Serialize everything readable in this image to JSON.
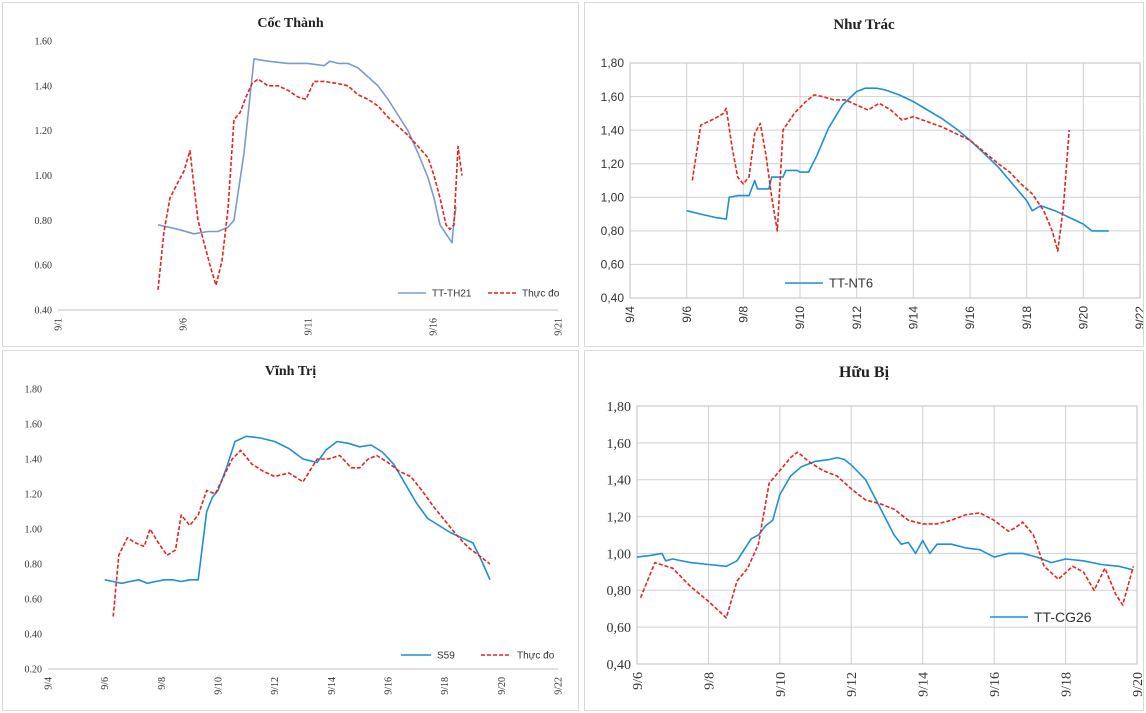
{
  "chart_data": [
    {
      "type": "line",
      "title": "Cốc Thành",
      "ylim": [
        0.4,
        1.6
      ],
      "yticks": [
        "0.40",
        "0.60",
        "0.80",
        "1.00",
        "1.20",
        "1.40",
        "1.60"
      ],
      "xlim": [
        1,
        26
      ],
      "xticks": [
        "9/1",
        "9/6",
        "9/11",
        "9/16",
        "9/21"
      ],
      "grid": false,
      "legend": "bottom-right",
      "series": [
        {
          "name": "TT-TH21",
          "color": "#7a9ccc",
          "dash": "solid",
          "x": [
            6.0,
            7.0,
            7.8,
            8.5,
            9.0,
            9.5,
            9.8,
            10.3,
            10.8,
            11.5,
            12.5,
            13.5,
            14.3,
            14.6,
            15.0,
            15.5,
            16.0,
            16.5,
            17.0,
            17.5,
            18.0,
            18.5,
            19.0,
            19.5,
            19.8,
            20.1,
            20.4,
            20.7,
            20.8,
            20.9
          ],
          "y": [
            0.78,
            0.76,
            0.74,
            0.75,
            0.75,
            0.77,
            0.8,
            1.1,
            1.52,
            1.51,
            1.5,
            1.5,
            1.49,
            1.51,
            1.5,
            1.5,
            1.48,
            1.44,
            1.4,
            1.34,
            1.27,
            1.2,
            1.1,
            0.99,
            0.9,
            0.78,
            0.74,
            0.7,
            0.8,
            0.86
          ]
        },
        {
          "name": "Thực đo",
          "color": "#e8231d",
          "dash": "dashed",
          "x": [
            6.0,
            6.3,
            6.6,
            7.0,
            7.3,
            7.6,
            7.8,
            8.0,
            8.3,
            8.6,
            8.9,
            9.2,
            9.5,
            9.8,
            10.1,
            10.4,
            10.7,
            11.0,
            11.5,
            12.0,
            12.5,
            13.0,
            13.4,
            13.8,
            14.3,
            15.0,
            15.5,
            16.0,
            16.5,
            17.0,
            17.5,
            18.0,
            18.5,
            19.0,
            19.5,
            19.8,
            20.1,
            20.4,
            20.6,
            20.8,
            21.0,
            21.2
          ],
          "y": [
            0.49,
            0.75,
            0.9,
            0.97,
            1.02,
            1.11,
            0.95,
            0.8,
            0.7,
            0.6,
            0.51,
            0.62,
            0.85,
            1.25,
            1.28,
            1.35,
            1.41,
            1.43,
            1.4,
            1.4,
            1.38,
            1.35,
            1.34,
            1.42,
            1.42,
            1.41,
            1.4,
            1.36,
            1.34,
            1.31,
            1.26,
            1.22,
            1.18,
            1.13,
            1.08,
            1.0,
            0.9,
            0.78,
            0.76,
            0.78,
            1.13,
            1.0
          ]
        }
      ]
    },
    {
      "type": "line",
      "title": "Như Trác",
      "ylim": [
        0.4,
        1.8
      ],
      "yticks": [
        "0,40",
        "0,60",
        "0,80",
        "1,00",
        "1,20",
        "1,40",
        "1,60",
        "1,80"
      ],
      "xlim": [
        4,
        22
      ],
      "xticks": [
        "9/4",
        "9/6",
        "9/8",
        "9/10",
        "9/12",
        "9/14",
        "9/16",
        "9/18",
        "9/20",
        "9/22"
      ],
      "grid": true,
      "legend": "bottom-left",
      "series": [
        {
          "name": "TT-NT6",
          "color": "#1f8fd3",
          "dash": "solid",
          "x": [
            6.0,
            6.5,
            7.0,
            7.4,
            7.5,
            7.8,
            8.2,
            8.4,
            8.5,
            8.9,
            9.0,
            9.4,
            9.5,
            9.9,
            10.0,
            10.3,
            10.6,
            11.0,
            11.5,
            12.0,
            12.3,
            12.7,
            13.0,
            13.5,
            14.0,
            14.5,
            15.0,
            15.5,
            16.0,
            16.5,
            17.0,
            17.5,
            18.0,
            18.2,
            18.5,
            19.0,
            19.5,
            20.0,
            20.3,
            20.5,
            20.9
          ],
          "y": [
            0.92,
            0.9,
            0.88,
            0.87,
            1.0,
            1.01,
            1.01,
            1.1,
            1.05,
            1.05,
            1.12,
            1.12,
            1.16,
            1.16,
            1.15,
            1.15,
            1.25,
            1.41,
            1.55,
            1.63,
            1.65,
            1.65,
            1.64,
            1.61,
            1.57,
            1.52,
            1.47,
            1.41,
            1.34,
            1.26,
            1.18,
            1.08,
            0.98,
            0.92,
            0.95,
            0.92,
            0.88,
            0.84,
            0.8,
            0.8,
            0.8
          ]
        },
        {
          "name": "",
          "color": "#e8231d",
          "dash": "dashed",
          "x": [
            6.2,
            6.5,
            7.0,
            7.3,
            7.4,
            7.6,
            7.8,
            8.0,
            8.2,
            8.4,
            8.6,
            8.8,
            9.0,
            9.2,
            9.4,
            9.8,
            10.2,
            10.5,
            10.8,
            11.2,
            11.6,
            12.0,
            12.4,
            12.8,
            13.2,
            13.6,
            14.0,
            14.5,
            15.0,
            15.5,
            16.0,
            16.5,
            17.0,
            17.4,
            17.8,
            18.2,
            18.6,
            18.9,
            19.1,
            19.3,
            19.5
          ],
          "y": [
            1.1,
            1.43,
            1.47,
            1.5,
            1.53,
            1.3,
            1.12,
            1.08,
            1.12,
            1.38,
            1.44,
            1.25,
            1.0,
            0.8,
            1.4,
            1.5,
            1.57,
            1.61,
            1.6,
            1.58,
            1.58,
            1.55,
            1.52,
            1.56,
            1.52,
            1.46,
            1.48,
            1.45,
            1.42,
            1.38,
            1.34,
            1.27,
            1.2,
            1.15,
            1.08,
            1.02,
            0.92,
            0.8,
            0.68,
            0.95,
            1.4
          ]
        }
      ]
    },
    {
      "type": "line",
      "title": "Vĩnh Trị",
      "ylim": [
        0.2,
        1.8
      ],
      "yticks": [
        "0.20",
        "0.40",
        "0.60",
        "0.80",
        "1.00",
        "1.20",
        "1.40",
        "1.60",
        "1.80"
      ],
      "xlim": [
        4,
        22
      ],
      "xticks": [
        "9/4",
        "9/6",
        "9/8",
        "9/10",
        "9/12",
        "9/14",
        "9/16",
        "9/18",
        "9/20",
        "9/22"
      ],
      "grid": false,
      "legend": "bottom-right",
      "series": [
        {
          "name": "S59",
          "color": "#1f8fd3",
          "dash": "solid",
          "x": [
            6.0,
            6.3,
            6.6,
            6.9,
            7.2,
            7.5,
            7.8,
            8.1,
            8.4,
            8.7,
            9.0,
            9.3,
            9.6,
            9.8,
            10.0,
            10.3,
            10.6,
            11.0,
            11.5,
            12.0,
            12.5,
            13.0,
            13.5,
            13.8,
            14.2,
            14.6,
            15.0,
            15.4,
            15.8,
            16.2,
            16.6,
            17.0,
            17.4,
            17.8,
            18.2,
            18.6,
            19.0,
            19.3,
            19.6
          ],
          "y": [
            0.71,
            0.7,
            0.69,
            0.7,
            0.71,
            0.69,
            0.7,
            0.71,
            0.71,
            0.7,
            0.71,
            0.71,
            1.1,
            1.18,
            1.22,
            1.35,
            1.5,
            1.53,
            1.52,
            1.5,
            1.46,
            1.4,
            1.38,
            1.45,
            1.5,
            1.49,
            1.47,
            1.48,
            1.44,
            1.37,
            1.26,
            1.15,
            1.06,
            1.02,
            0.98,
            0.95,
            0.92,
            0.82,
            0.71
          ]
        },
        {
          "name": "Thực đo",
          "color": "#e8231d",
          "dash": "dashed",
          "x": [
            6.3,
            6.5,
            6.8,
            7.1,
            7.4,
            7.6,
            7.9,
            8.2,
            8.5,
            8.7,
            9.0,
            9.3,
            9.6,
            9.9,
            10.2,
            10.5,
            10.8,
            11.2,
            11.6,
            12.0,
            12.5,
            13.0,
            13.5,
            13.9,
            14.3,
            14.7,
            15.0,
            15.3,
            15.6,
            16.0,
            16.4,
            16.8,
            17.2,
            17.6,
            18.0,
            18.4,
            18.8,
            19.2,
            19.6
          ],
          "y": [
            0.5,
            0.85,
            0.95,
            0.92,
            0.9,
            1.0,
            0.92,
            0.85,
            0.88,
            1.08,
            1.02,
            1.08,
            1.22,
            1.2,
            1.3,
            1.4,
            1.45,
            1.37,
            1.33,
            1.3,
            1.32,
            1.27,
            1.4,
            1.4,
            1.42,
            1.35,
            1.35,
            1.4,
            1.42,
            1.38,
            1.33,
            1.3,
            1.22,
            1.13,
            1.05,
            0.97,
            0.9,
            0.85,
            0.8
          ]
        }
      ]
    },
    {
      "type": "line",
      "title": "Hữu Bị",
      "ylim": [
        0.4,
        1.8
      ],
      "yticks": [
        "0,40",
        "0,60",
        "0,80",
        "1,00",
        "1,20",
        "1,40",
        "1,60",
        "1,80"
      ],
      "xlim": [
        6,
        20
      ],
      "xticks": [
        "9/6",
        "9/8",
        "9/10",
        "9/12",
        "9/14",
        "9/16",
        "9/18",
        "9/20"
      ],
      "grid": true,
      "legend": "bottom-right",
      "series": [
        {
          "name": "TT-CG26",
          "color": "#1f8fd3",
          "dash": "solid",
          "x": [
            6.0,
            6.4,
            6.7,
            6.8,
            7.0,
            7.5,
            8.0,
            8.5,
            8.8,
            9.0,
            9.2,
            9.4,
            9.6,
            9.8,
            10.0,
            10.3,
            10.6,
            11.0,
            11.4,
            11.6,
            11.8,
            12.0,
            12.4,
            12.8,
            13.2,
            13.4,
            13.6,
            13.8,
            14.0,
            14.2,
            14.4,
            14.8,
            15.2,
            15.6,
            16.0,
            16.4,
            16.8,
            17.2,
            17.6,
            18.0,
            18.5,
            19.0,
            19.5,
            19.9
          ],
          "y": [
            0.98,
            0.99,
            1.0,
            0.96,
            0.97,
            0.95,
            0.94,
            0.93,
            0.96,
            1.02,
            1.08,
            1.1,
            1.15,
            1.18,
            1.32,
            1.42,
            1.47,
            1.5,
            1.51,
            1.52,
            1.51,
            1.48,
            1.4,
            1.25,
            1.1,
            1.05,
            1.06,
            1.0,
            1.07,
            1.0,
            1.05,
            1.05,
            1.03,
            1.02,
            0.98,
            1.0,
            1.0,
            0.98,
            0.95,
            0.97,
            0.96,
            0.94,
            0.93,
            0.91
          ]
        },
        {
          "name": "",
          "color": "#e8231d",
          "dash": "dashed",
          "x": [
            6.1,
            6.5,
            7.0,
            7.5,
            8.0,
            8.5,
            8.8,
            9.1,
            9.4,
            9.7,
            10.0,
            10.3,
            10.5,
            10.8,
            11.2,
            11.6,
            12.0,
            12.4,
            12.8,
            13.2,
            13.6,
            14.0,
            14.4,
            14.8,
            15.2,
            15.6,
            16.0,
            16.4,
            16.6,
            16.8,
            17.1,
            17.4,
            17.8,
            18.2,
            18.5,
            18.8,
            19.1,
            19.4,
            19.6,
            19.9
          ],
          "y": [
            0.76,
            0.95,
            0.92,
            0.82,
            0.74,
            0.65,
            0.85,
            0.92,
            1.05,
            1.38,
            1.45,
            1.52,
            1.55,
            1.5,
            1.45,
            1.42,
            1.35,
            1.29,
            1.27,
            1.24,
            1.18,
            1.16,
            1.16,
            1.18,
            1.21,
            1.22,
            1.18,
            1.12,
            1.14,
            1.17,
            1.1,
            0.93,
            0.86,
            0.93,
            0.9,
            0.8,
            0.92,
            0.78,
            0.72,
            0.93
          ]
        }
      ]
    }
  ]
}
